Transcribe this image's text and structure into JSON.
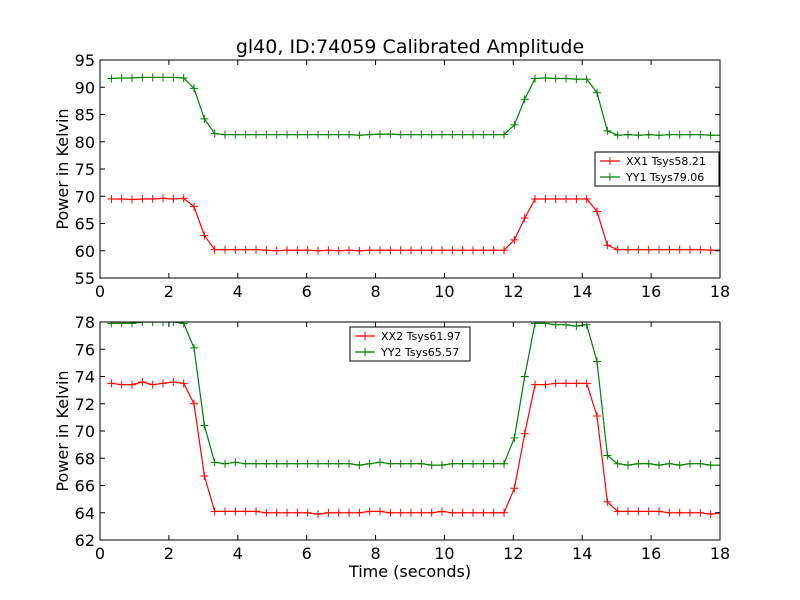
{
  "title": "gl40, ID:74059 Calibrated Amplitude",
  "chart_data": [
    {
      "type": "line",
      "xlabel": "",
      "ylabel": "Power in Kelvin",
      "xlim": [
        0,
        18
      ],
      "ylim": [
        55,
        95
      ],
      "xticks": [
        0,
        2,
        4,
        6,
        8,
        10,
        12,
        14,
        16,
        18
      ],
      "yticks": [
        55,
        60,
        65,
        70,
        75,
        80,
        85,
        90,
        95
      ],
      "legend": "right",
      "x": [
        0.33,
        0.63,
        0.93,
        1.23,
        1.53,
        1.83,
        2.13,
        2.43,
        2.73,
        3.03,
        3.33,
        3.63,
        3.93,
        4.23,
        4.53,
        4.83,
        5.13,
        5.43,
        5.73,
        6.03,
        6.33,
        6.63,
        6.93,
        7.23,
        7.53,
        7.83,
        8.13,
        8.43,
        8.73,
        9.03,
        9.33,
        9.63,
        9.93,
        10.23,
        10.53,
        10.83,
        11.13,
        11.43,
        11.73,
        12.03,
        12.33,
        12.63,
        12.93,
        13.23,
        13.53,
        13.83,
        14.13,
        14.43,
        14.73,
        15.03,
        15.33,
        15.63,
        15.93,
        16.23,
        16.53,
        16.83,
        17.13,
        17.43,
        17.73,
        18.03
      ],
      "series": [
        {
          "name": "XX1 Tsys58.21",
          "color": "#ff0000",
          "values": [
            69.5,
            69.5,
            69.4,
            69.5,
            69.5,
            69.6,
            69.5,
            69.6,
            68.1,
            62.8,
            60.2,
            60.2,
            60.2,
            60.2,
            60.2,
            60.1,
            60.0,
            60.1,
            60.1,
            60.1,
            60.0,
            60.1,
            60.0,
            60.1,
            60.0,
            60.1,
            60.1,
            60.1,
            60.1,
            60.1,
            60.1,
            60.1,
            60.1,
            60.1,
            60.1,
            60.1,
            60.1,
            60.1,
            60.1,
            62.0,
            66.0,
            69.5,
            69.5,
            69.5,
            69.5,
            69.5,
            69.5,
            67.2,
            61.0,
            60.2,
            60.2,
            60.2,
            60.2,
            60.2,
            60.2,
            60.2,
            60.2,
            60.2,
            60.1,
            60.1
          ]
        },
        {
          "name": "YY1 Tsys79.06",
          "color": "#008000",
          "values": [
            91.6,
            91.7,
            91.7,
            91.8,
            91.8,
            91.8,
            91.8,
            91.7,
            89.8,
            84.2,
            81.5,
            81.3,
            81.3,
            81.3,
            81.3,
            81.3,
            81.3,
            81.3,
            81.3,
            81.3,
            81.3,
            81.3,
            81.3,
            81.3,
            81.2,
            81.3,
            81.4,
            81.4,
            81.3,
            81.3,
            81.3,
            81.3,
            81.3,
            81.3,
            81.3,
            81.3,
            81.3,
            81.3,
            81.3,
            83.1,
            87.8,
            91.6,
            91.7,
            91.6,
            91.6,
            91.5,
            91.5,
            89.0,
            82.0,
            81.2,
            81.3,
            81.2,
            81.3,
            81.2,
            81.3,
            81.3,
            81.3,
            81.3,
            81.2,
            81.2
          ]
        }
      ]
    },
    {
      "type": "line",
      "xlabel": "Time (seconds)",
      "ylabel": "Power in Kelvin",
      "xlim": [
        0,
        18
      ],
      "ylim": [
        62,
        78
      ],
      "xticks": [
        0,
        2,
        4,
        6,
        8,
        10,
        12,
        14,
        16,
        18
      ],
      "yticks": [
        62,
        64,
        66,
        68,
        70,
        72,
        74,
        76,
        78
      ],
      "legend": "top-center",
      "x": [
        0.33,
        0.63,
        0.93,
        1.23,
        1.53,
        1.83,
        2.13,
        2.43,
        2.73,
        3.03,
        3.33,
        3.63,
        3.93,
        4.23,
        4.53,
        4.83,
        5.13,
        5.43,
        5.73,
        6.03,
        6.33,
        6.63,
        6.93,
        7.23,
        7.53,
        7.83,
        8.13,
        8.43,
        8.73,
        9.03,
        9.33,
        9.63,
        9.93,
        10.23,
        10.53,
        10.83,
        11.13,
        11.43,
        11.73,
        12.03,
        12.33,
        12.63,
        12.93,
        13.23,
        13.53,
        13.83,
        14.13,
        14.43,
        14.73,
        15.03,
        15.33,
        15.63,
        15.93,
        16.23,
        16.53,
        16.83,
        17.13,
        17.43,
        17.73,
        18.03
      ],
      "series": [
        {
          "name": "XX2 Tsys61.97",
          "color": "#ff0000",
          "values": [
            73.5,
            73.4,
            73.4,
            73.6,
            73.4,
            73.5,
            73.6,
            73.5,
            72.0,
            66.7,
            64.1,
            64.1,
            64.1,
            64.1,
            64.1,
            64.0,
            64.0,
            64.0,
            64.0,
            64.0,
            63.9,
            64.0,
            64.0,
            64.0,
            64.0,
            64.1,
            64.1,
            64.0,
            64.0,
            64.0,
            64.0,
            64.0,
            64.1,
            64.0,
            64.0,
            64.0,
            64.0,
            64.0,
            64.0,
            65.8,
            69.8,
            73.4,
            73.4,
            73.5,
            73.5,
            73.5,
            73.5,
            71.1,
            64.8,
            64.1,
            64.1,
            64.1,
            64.1,
            64.1,
            64.0,
            64.0,
            64.0,
            64.0,
            63.9,
            64.0
          ]
        },
        {
          "name": "YY2 Tsys65.57",
          "color": "#008000",
          "values": [
            77.9,
            77.9,
            77.9,
            78.0,
            78.0,
            78.0,
            78.0,
            77.9,
            76.1,
            70.4,
            67.7,
            67.6,
            67.7,
            67.6,
            67.6,
            67.6,
            67.6,
            67.6,
            67.6,
            67.6,
            67.6,
            67.6,
            67.6,
            67.6,
            67.5,
            67.6,
            67.7,
            67.6,
            67.6,
            67.6,
            67.6,
            67.5,
            67.5,
            67.6,
            67.6,
            67.6,
            67.6,
            67.6,
            67.6,
            69.5,
            74.0,
            77.9,
            77.9,
            77.8,
            77.8,
            77.7,
            77.8,
            75.1,
            68.2,
            67.6,
            67.5,
            67.6,
            67.6,
            67.5,
            67.6,
            67.5,
            67.6,
            67.6,
            67.5,
            67.5
          ]
        }
      ]
    }
  ]
}
